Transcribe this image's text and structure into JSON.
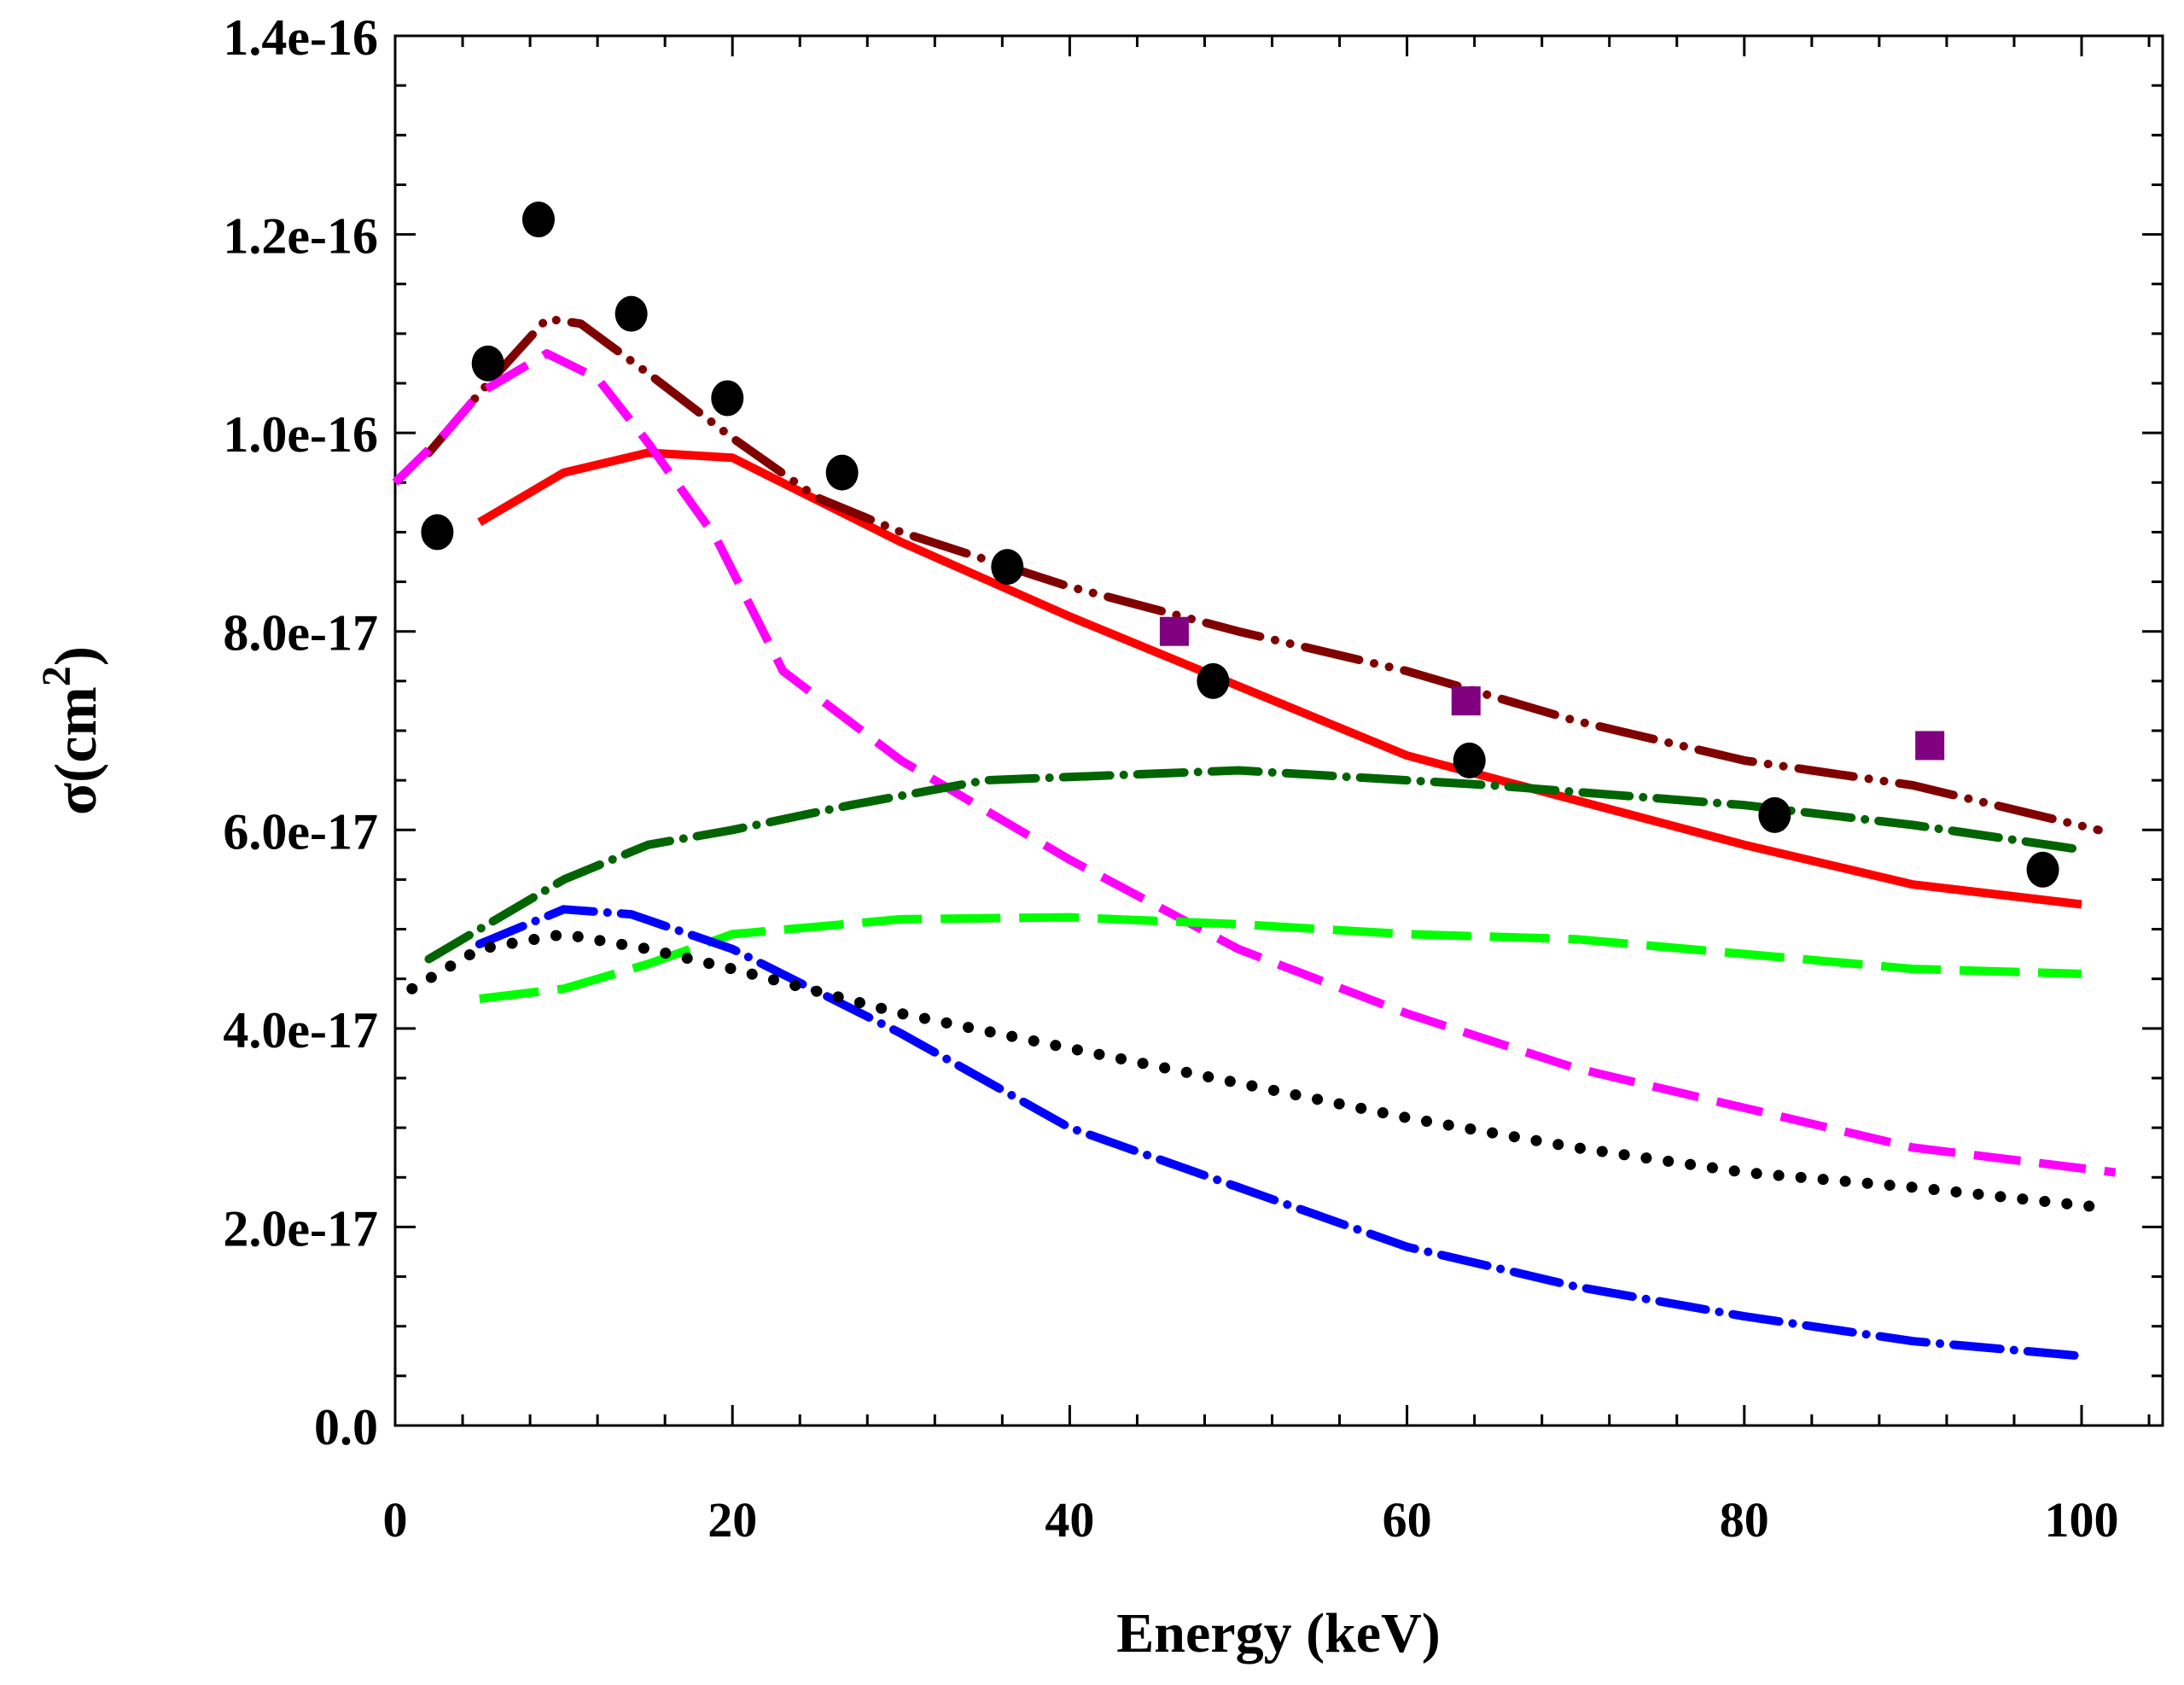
{
  "chart_data": {
    "type": "line",
    "title": "",
    "xlabel": "Energy (keV)",
    "ylabel_base": "σ(cm",
    "ylabel_sup": "2",
    "ylabel_close": ")",
    "xlim": [
      0,
      105
    ],
    "ylim": [
      0,
      1.4e-16
    ],
    "x_ticks": [
      0,
      20,
      40,
      60,
      80,
      100
    ],
    "x_tick_labels": [
      "0",
      "20",
      "40",
      "60",
      "80",
      "100"
    ],
    "y_ticks": [
      0,
      2e-17,
      4e-17,
      6e-17,
      8e-17,
      1e-16,
      1.2e-16,
      1.4e-16
    ],
    "y_tick_labels": [
      "0.0",
      "2.0e-17",
      "4.0e-17",
      "6.0e-17",
      "8.0e-17",
      "1.0e-16",
      "1.2e-16",
      "1.4e-16"
    ],
    "series": [
      {
        "name": "red-solid",
        "color": "#ff0000",
        "style": "solid",
        "x": [
          5,
          10,
          15,
          20,
          30,
          40,
          50,
          60,
          70,
          80,
          90,
          100
        ],
        "y": [
          9.1e-17,
          9.6e-17,
          9.8e-17,
          9.75e-17,
          8.9e-17,
          8.15e-17,
          7.45e-17,
          6.75e-17,
          6.3e-17,
          5.85e-17,
          5.45e-17,
          5.25e-17
        ]
      },
      {
        "name": "darkred-dash-dot-dot",
        "color": "#800000",
        "style": "dashdotdot",
        "x": [
          2,
          5,
          9,
          11,
          15,
          20,
          25,
          30,
          40,
          50,
          60,
          70,
          80,
          90,
          101
        ],
        "y": [
          9.8e-17,
          1.04e-16,
          1.115e-16,
          1.11e-16,
          1.06e-16,
          9.95e-17,
          9.35e-17,
          9e-17,
          8.45e-17,
          8e-17,
          7.6e-17,
          7.1e-17,
          6.7e-17,
          6.45e-17,
          6e-17
        ]
      },
      {
        "name": "magenta-dash",
        "color": "#ff00ff",
        "style": "dash",
        "x": [
          0,
          3,
          5,
          9,
          12,
          15,
          19,
          23,
          30,
          40,
          50,
          60,
          70,
          80,
          90,
          102
        ],
        "y": [
          9.5e-17,
          1e-16,
          1.04e-16,
          1.08e-16,
          1.055e-16,
          9.9e-17,
          8.95e-17,
          7.6e-17,
          6.7e-17,
          5.7e-17,
          4.8e-17,
          4.15e-17,
          3.6e-17,
          3.2e-17,
          2.8e-17,
          2.55e-17
        ]
      },
      {
        "name": "darkgreen-dash-dot",
        "color": "#006400",
        "style": "dashdot",
        "x": [
          2,
          5,
          10,
          15,
          20,
          27,
          35,
          50,
          55,
          65,
          80,
          90,
          100
        ],
        "y": [
          4.7e-17,
          5e-17,
          5.5e-17,
          5.85e-17,
          6e-17,
          6.25e-17,
          6.5e-17,
          6.6e-17,
          6.55e-17,
          6.45e-17,
          6.25e-17,
          6.05e-17,
          5.8e-17
        ]
      },
      {
        "name": "lime-long-dash",
        "color": "#00ff00",
        "style": "longdash",
        "x": [
          5,
          10,
          15,
          20,
          30,
          40,
          50,
          60,
          70,
          80,
          90,
          100
        ],
        "y": [
          4.3e-17,
          4.4e-17,
          4.65e-17,
          4.95e-17,
          5.1e-17,
          5.12e-17,
          5.05e-17,
          4.95e-17,
          4.9e-17,
          4.75e-17,
          4.6e-17,
          4.55e-17
        ]
      },
      {
        "name": "blue-dash-dot",
        "color": "#0000ff",
        "style": "dashdot",
        "x": [
          5,
          10,
          14,
          20,
          30,
          40,
          50,
          60,
          70,
          80,
          90,
          100
        ],
        "y": [
          4.85e-17,
          5.2e-17,
          5.15e-17,
          4.8e-17,
          3.95e-17,
          3e-17,
          2.4e-17,
          1.8e-17,
          1.4e-17,
          1.1e-17,
          8.5e-18,
          7e-18
        ]
      },
      {
        "name": "black-dotted",
        "color": "#000000",
        "style": "dotted",
        "x": [
          1,
          5,
          10,
          15,
          20,
          30,
          40,
          50,
          60,
          70,
          80,
          90,
          101
        ],
        "y": [
          4.4e-17,
          4.8e-17,
          4.95e-17,
          4.8e-17,
          4.6e-17,
          4.15e-17,
          3.8e-17,
          3.45e-17,
          3.1e-17,
          2.8e-17,
          2.55e-17,
          2.4e-17,
          2.2e-17
        ]
      }
    ],
    "markers": [
      {
        "name": "black-circles",
        "shape": "circle",
        "color": "#000000",
        "x": [
          2.5,
          5.5,
          8.5,
          14,
          19.7,
          26.5,
          36.3,
          48.5,
          63.7,
          81.8,
          97.7
        ],
        "y": [
          9e-17,
          1.07e-16,
          1.215e-16,
          1.12e-16,
          1.035e-16,
          9.6e-17,
          8.65e-17,
          7.5e-17,
          6.7e-17,
          6.15e-17,
          5.6e-17
        ]
      },
      {
        "name": "purple-squares",
        "shape": "square",
        "color": "#800080",
        "x": [
          46.2,
          63.5,
          91
        ],
        "y": [
          8e-17,
          7.3e-17,
          6.85e-17
        ]
      }
    ]
  }
}
